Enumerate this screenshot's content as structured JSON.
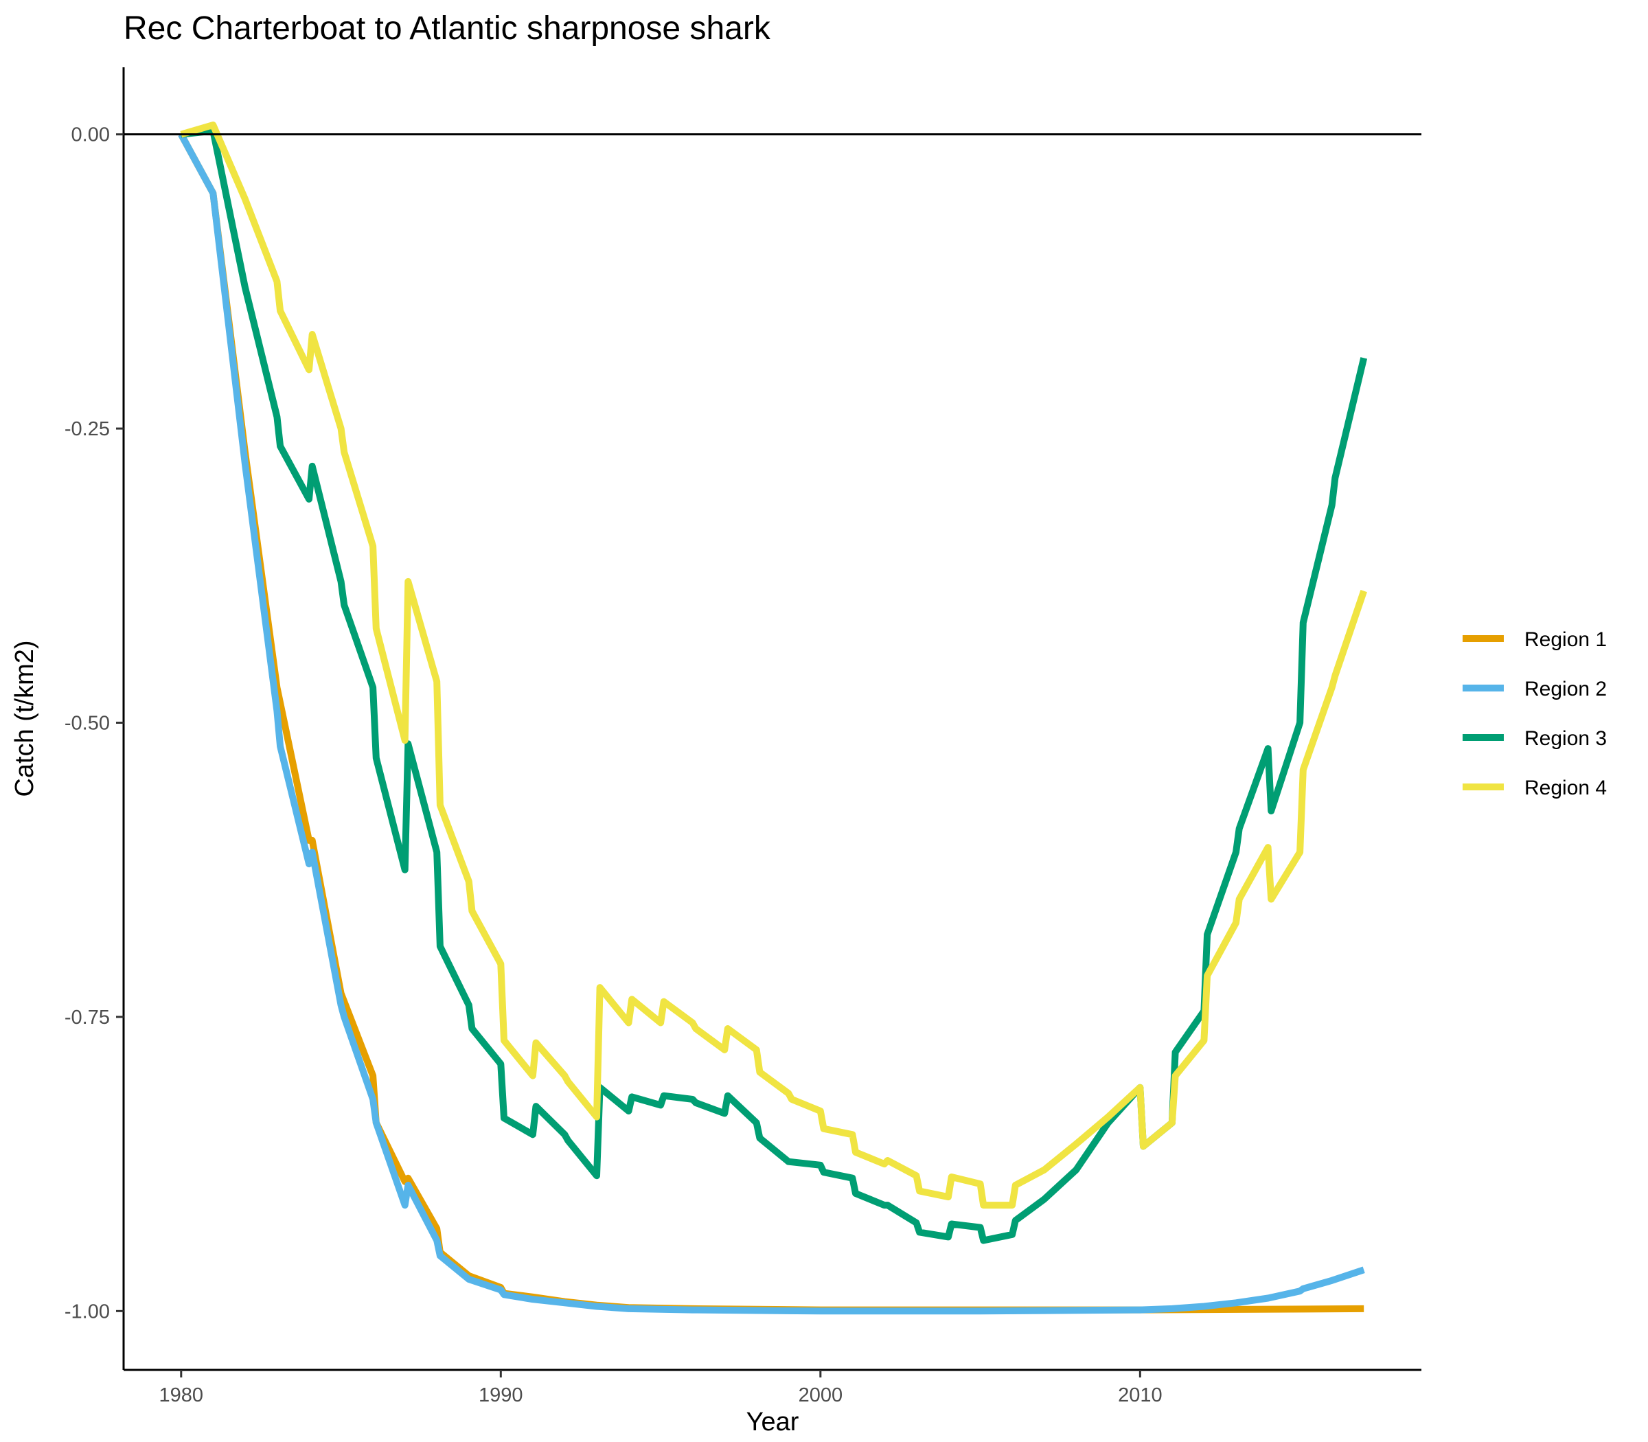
{
  "chart_data": {
    "type": "line",
    "title": "Rec Charterboat to Atlantic sharpnose shark",
    "xlabel": "Year",
    "ylabel": "Catch (t/km2)",
    "xlim": [
      1978.2,
      2018.8
    ],
    "ylim": [
      -1.05,
      0.057
    ],
    "xticks": [
      1980,
      1990,
      2000,
      2010
    ],
    "yticks": [
      0.0,
      -0.25,
      -0.5,
      -0.75,
      -1.0
    ],
    "ytick_labels": [
      "0.00",
      "-0.25",
      "-0.50",
      "-0.75",
      "-1.00"
    ],
    "reference_line_y": 0,
    "grid": false,
    "legend_position": "right",
    "series": [
      {
        "name": "Region 1",
        "color": "#E69F00",
        "points": [
          [
            1980,
            0.0
          ],
          [
            1981,
            -0.05
          ],
          [
            1982,
            -0.27
          ],
          [
            1983,
            -0.47
          ],
          [
            1984,
            -0.6
          ],
          [
            1984.1,
            -0.6
          ],
          [
            1985,
            -0.73
          ],
          [
            1986,
            -0.8
          ],
          [
            1986.1,
            -0.84
          ],
          [
            1987,
            -0.89
          ],
          [
            1987.1,
            -0.887
          ],
          [
            1988,
            -0.93
          ],
          [
            1988.1,
            -0.95
          ],
          [
            1989,
            -0.97
          ],
          [
            1990,
            -0.98
          ],
          [
            1990.1,
            -0.985
          ],
          [
            1991,
            -0.988
          ],
          [
            1992,
            -0.992
          ],
          [
            1993,
            -0.995
          ],
          [
            1994,
            -0.997
          ],
          [
            1996,
            -0.998
          ],
          [
            2000,
            -0.999
          ],
          [
            2010,
            -0.999
          ],
          [
            2017,
            -0.998
          ]
        ]
      },
      {
        "name": "Region 2",
        "color": "#56B4E9",
        "points": [
          [
            1980,
            0.0
          ],
          [
            1981,
            -0.05
          ],
          [
            1982,
            -0.28
          ],
          [
            1983,
            -0.49
          ],
          [
            1983.1,
            -0.52
          ],
          [
            1984,
            -0.62
          ],
          [
            1984.1,
            -0.61
          ],
          [
            1985,
            -0.74
          ],
          [
            1985.1,
            -0.75
          ],
          [
            1986,
            -0.82
          ],
          [
            1986.1,
            -0.84
          ],
          [
            1987,
            -0.91
          ],
          [
            1987.1,
            -0.893
          ],
          [
            1988,
            -0.94
          ],
          [
            1988.1,
            -0.953
          ],
          [
            1989,
            -0.973
          ],
          [
            1990,
            -0.982
          ],
          [
            1990.1,
            -0.986
          ],
          [
            1991,
            -0.99
          ],
          [
            1992,
            -0.993
          ],
          [
            1993,
            -0.996
          ],
          [
            1994,
            -0.998
          ],
          [
            1996,
            -0.999
          ],
          [
            2000,
            -1.0
          ],
          [
            2005,
            -1.0
          ],
          [
            2010,
            -0.999
          ],
          [
            2011,
            -0.998
          ],
          [
            2012,
            -0.996
          ],
          [
            2013,
            -0.993
          ],
          [
            2014,
            -0.989
          ],
          [
            2015,
            -0.983
          ],
          [
            2015.1,
            -0.981
          ],
          [
            2016,
            -0.974
          ],
          [
            2017,
            -0.965
          ]
        ]
      },
      {
        "name": "Region 3",
        "color": "#009E73",
        "points": [
          [
            1980,
            0.0
          ],
          [
            1981,
            0.003
          ],
          [
            1982,
            -0.13
          ],
          [
            1983,
            -0.24
          ],
          [
            1983.1,
            -0.265
          ],
          [
            1984,
            -0.31
          ],
          [
            1984.1,
            -0.282
          ],
          [
            1985,
            -0.38
          ],
          [
            1985.1,
            -0.4
          ],
          [
            1986,
            -0.47
          ],
          [
            1986.1,
            -0.53
          ],
          [
            1987,
            -0.625
          ],
          [
            1987.1,
            -0.518
          ],
          [
            1988,
            -0.61
          ],
          [
            1988.1,
            -0.69
          ],
          [
            1989,
            -0.74
          ],
          [
            1989.1,
            -0.76
          ],
          [
            1990,
            -0.79
          ],
          [
            1990.1,
            -0.836
          ],
          [
            1991,
            -0.85
          ],
          [
            1991.1,
            -0.826
          ],
          [
            1992,
            -0.85
          ],
          [
            1992.1,
            -0.855
          ],
          [
            1993,
            -0.885
          ],
          [
            1993.1,
            -0.81
          ],
          [
            1994,
            -0.83
          ],
          [
            1994.1,
            -0.818
          ],
          [
            1995,
            -0.825
          ],
          [
            1995.1,
            -0.817
          ],
          [
            1996,
            -0.82
          ],
          [
            1996.1,
            -0.823
          ],
          [
            1997,
            -0.832
          ],
          [
            1997.1,
            -0.817
          ],
          [
            1998,
            -0.84
          ],
          [
            1998.1,
            -0.853
          ],
          [
            1999,
            -0.873
          ],
          [
            2000,
            -0.876
          ],
          [
            2000.1,
            -0.882
          ],
          [
            2001,
            -0.887
          ],
          [
            2001.1,
            -0.9
          ],
          [
            2002,
            -0.91
          ],
          [
            2002.1,
            -0.91
          ],
          [
            2003,
            -0.925
          ],
          [
            2003.1,
            -0.933
          ],
          [
            2004,
            -0.937
          ],
          [
            2004.1,
            -0.926
          ],
          [
            2005,
            -0.929
          ],
          [
            2005.1,
            -0.94
          ],
          [
            2006,
            -0.935
          ],
          [
            2006.1,
            -0.923
          ],
          [
            2007,
            -0.905
          ],
          [
            2008,
            -0.88
          ],
          [
            2009,
            -0.84
          ],
          [
            2010,
            -0.81
          ],
          [
            2010.1,
            -0.86
          ],
          [
            2011,
            -0.84
          ],
          [
            2011.1,
            -0.78
          ],
          [
            2012,
            -0.745
          ],
          [
            2012.1,
            -0.68
          ],
          [
            2013,
            -0.61
          ],
          [
            2013.1,
            -0.59
          ],
          [
            2014,
            -0.522
          ],
          [
            2014.1,
            -0.575
          ],
          [
            2015,
            -0.5
          ],
          [
            2015.1,
            -0.415
          ],
          [
            2016,
            -0.315
          ],
          [
            2016.1,
            -0.292
          ],
          [
            2017,
            -0.19
          ]
        ]
      },
      {
        "name": "Region 4",
        "color": "#F0E442",
        "points": [
          [
            1980,
            0.0
          ],
          [
            1981,
            0.008
          ],
          [
            1982,
            -0.055
          ],
          [
            1983,
            -0.125
          ],
          [
            1983.1,
            -0.15
          ],
          [
            1984,
            -0.2
          ],
          [
            1984.1,
            -0.17
          ],
          [
            1985,
            -0.25
          ],
          [
            1985.1,
            -0.27
          ],
          [
            1986,
            -0.35
          ],
          [
            1986.1,
            -0.42
          ],
          [
            1987,
            -0.515
          ],
          [
            1987.1,
            -0.38
          ],
          [
            1988,
            -0.465
          ],
          [
            1988.1,
            -0.57
          ],
          [
            1989,
            -0.635
          ],
          [
            1989.1,
            -0.66
          ],
          [
            1990,
            -0.705
          ],
          [
            1990.1,
            -0.77
          ],
          [
            1991,
            -0.8
          ],
          [
            1991.1,
            -0.772
          ],
          [
            1992,
            -0.8
          ],
          [
            1992.1,
            -0.805
          ],
          [
            1993,
            -0.835
          ],
          [
            1993.1,
            -0.725
          ],
          [
            1994,
            -0.755
          ],
          [
            1994.1,
            -0.735
          ],
          [
            1995,
            -0.755
          ],
          [
            1995.1,
            -0.737
          ],
          [
            1996,
            -0.755
          ],
          [
            1996.1,
            -0.76
          ],
          [
            1997,
            -0.778
          ],
          [
            1997.1,
            -0.76
          ],
          [
            1998,
            -0.778
          ],
          [
            1998.1,
            -0.797
          ],
          [
            1999,
            -0.815
          ],
          [
            1999.1,
            -0.82
          ],
          [
            2000,
            -0.83
          ],
          [
            2000.1,
            -0.845
          ],
          [
            2001,
            -0.85
          ],
          [
            2001.1,
            -0.865
          ],
          [
            2002,
            -0.875
          ],
          [
            2002.1,
            -0.872
          ],
          [
            2003,
            -0.885
          ],
          [
            2003.1,
            -0.898
          ],
          [
            2004,
            -0.903
          ],
          [
            2004.1,
            -0.886
          ],
          [
            2005,
            -0.892
          ],
          [
            2005.1,
            -0.91
          ],
          [
            2006,
            -0.91
          ],
          [
            2006.1,
            -0.893
          ],
          [
            2007,
            -0.88
          ],
          [
            2008,
            -0.858
          ],
          [
            2009,
            -0.835
          ],
          [
            2010,
            -0.81
          ],
          [
            2010.1,
            -0.86
          ],
          [
            2011,
            -0.84
          ],
          [
            2011.1,
            -0.8
          ],
          [
            2012,
            -0.77
          ],
          [
            2012.1,
            -0.715
          ],
          [
            2013,
            -0.67
          ],
          [
            2013.1,
            -0.65
          ],
          [
            2014,
            -0.606
          ],
          [
            2014.1,
            -0.65
          ],
          [
            2015,
            -0.61
          ],
          [
            2015.1,
            -0.54
          ],
          [
            2016,
            -0.47
          ],
          [
            2016.1,
            -0.46
          ],
          [
            2017,
            -0.388
          ]
        ]
      }
    ]
  }
}
